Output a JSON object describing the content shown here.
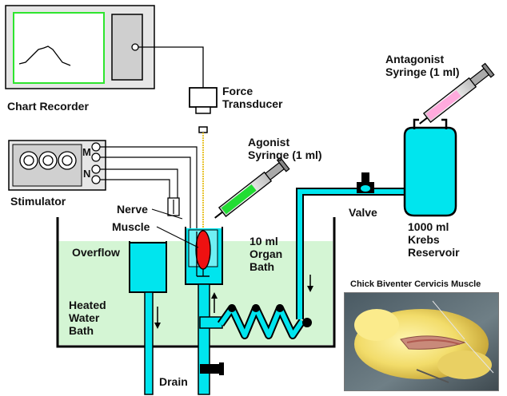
{
  "labels": {
    "chart_recorder": "Chart Recorder",
    "force_transducer_1": "Force",
    "force_transducer_2": "Transducer",
    "agonist_1": "Agonist",
    "agonist_2": "Syringe (1 ml)",
    "antagonist_1": "Antagonist",
    "antagonist_2": "Syringe (1 ml)",
    "stimulator": "Stimulator",
    "stim_m": "M",
    "stim_n": "N",
    "nerve": "Nerve",
    "muscle": "Muscle",
    "overflow": "Overflow",
    "organ_bath_1": "10 ml",
    "organ_bath_2": "Organ",
    "organ_bath_3": "Bath",
    "valve": "Valve",
    "reservoir_1": "1000 ml",
    "reservoir_2": "Krebs",
    "reservoir_3": "Reservoir",
    "water_bath_1": "Heated",
    "water_bath_2": "Water",
    "water_bath_3": "Bath",
    "drain": "Drain",
    "photo_caption": "Chick Biventer Cervicis Muscle"
  },
  "colors": {
    "krebs": "#00e5ee",
    "water_bath": "#d4f5d4",
    "agonist_liquid": "#22dd33",
    "antagonist_liquid": "#ffaadd",
    "muscle": "#ee1111",
    "line": "#000000"
  }
}
